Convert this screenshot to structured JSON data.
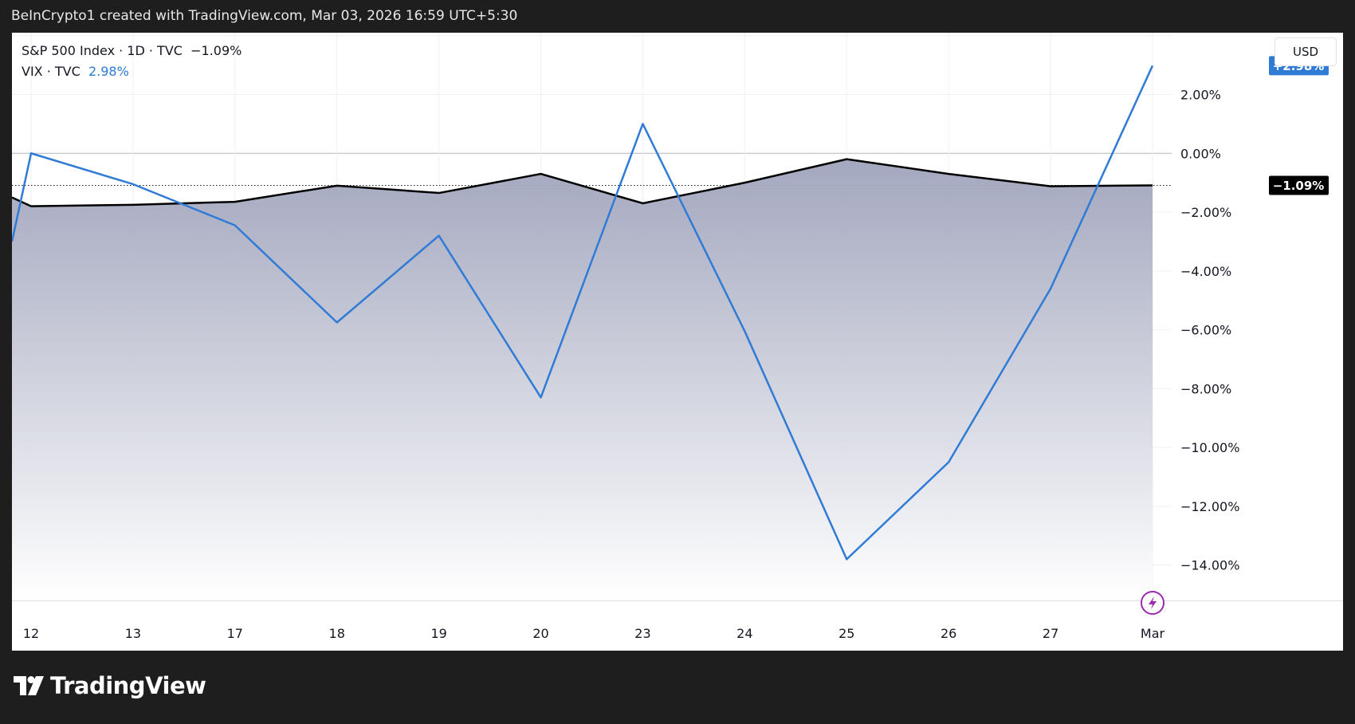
{
  "header": {
    "attribution": "BeInCrypto1 created with TradingView.com, Mar 03, 2026 16:59 UTC+5:30"
  },
  "legend": {
    "spx": {
      "label": "S&P 500 Index · 1D · TVC",
      "value": "−1.09%"
    },
    "vix": {
      "label": "VIX · TVC",
      "value": "2.98%"
    }
  },
  "price_scale": {
    "currency": "USD"
  },
  "footer": {
    "brand": "TradingView"
  },
  "colors": {
    "vix_line": "#2f7bd6",
    "spx_line": "#000000",
    "area_top": "#9fa3bb",
    "area_bottom": "#ffffff",
    "vix_tag": "#2f7bd6",
    "spx_tag": "#000000"
  },
  "chart_data": {
    "type": "line",
    "x": [
      "12",
      "13",
      "17",
      "18",
      "19",
      "20",
      "23",
      "24",
      "25",
      "26",
      "27",
      "Mar"
    ],
    "ylim": [
      -15.2,
      4.1
    ],
    "yticks": [
      2,
      0,
      -2,
      -4,
      -6,
      -8,
      -10,
      -12,
      -14
    ],
    "ytick_labels": [
      "2.00%",
      "0.00%",
      "−2.00%",
      "−4.00%",
      "−6.00%",
      "−8.00%",
      "−10.00%",
      "−12.00%",
      "−14.00%"
    ],
    "series": [
      {
        "name": "S&P 500 Index",
        "style": "area",
        "start": -1.5,
        "values": [
          -1.8,
          -1.75,
          -1.65,
          -1.1,
          -1.35,
          -0.7,
          -1.7,
          -1.0,
          -0.2,
          -0.7,
          -1.12,
          -1.09
        ],
        "last_label": "−1.09%"
      },
      {
        "name": "VIX",
        "style": "line",
        "start": -3.0,
        "values": [
          0.0,
          -1.05,
          -2.45,
          -5.75,
          -2.8,
          -8.3,
          1.0,
          -6.05,
          -13.8,
          -10.5,
          -4.6,
          2.98
        ],
        "last_label": "+2.98%"
      }
    ]
  }
}
